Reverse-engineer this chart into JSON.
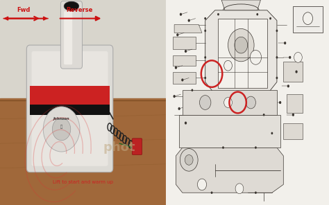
{
  "figsize": [
    4.74,
    2.96
  ],
  "dpi": 100,
  "bg_color": "#c8a882",
  "left": {
    "photo_bg": "#c8a882",
    "wall_color": "#d8d5cc",
    "table_color": "#a0683a",
    "box_body_color": "#e8e5e0",
    "box_stripe_color": "#cc2222",
    "box_black_stripe": "#111111",
    "handle_color": "#e0ddd8",
    "handle_tip_color": "#111111",
    "disc_color": "#e8e5e0",
    "disc_inner_color": "#c0c0c0",
    "cable_color": "#222222",
    "plug_color": "#bb2222",
    "swirl_color": "#dd3333",
    "photobucket_color": "#c0a080",
    "arrow_color": "#cc1111",
    "text_color": "#cc1111",
    "fwd_text": "Fwd",
    "rev_text": "Reverse",
    "bottom_text": "Lift to start and warm up",
    "bottom_text_color": "#cc2222"
  },
  "right": {
    "bg_color": "#f2f0eb",
    "line_color": "#3a3530",
    "circle1_color": "#cc2222",
    "circle2_color": "#cc2222"
  }
}
